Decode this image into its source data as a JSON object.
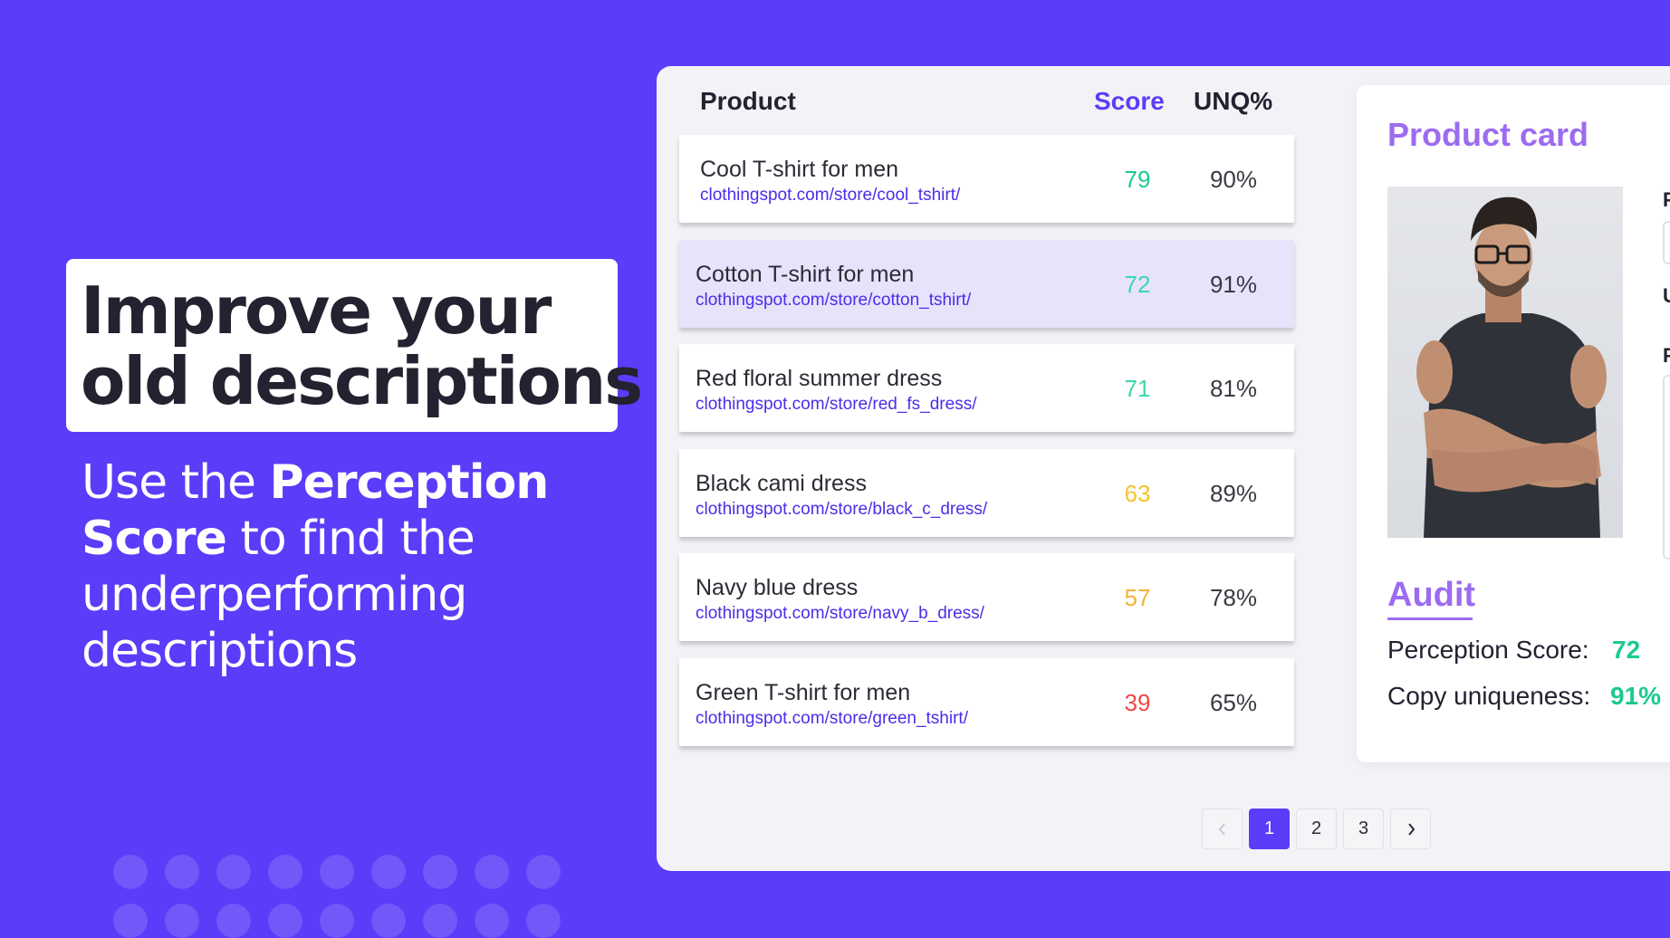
{
  "hero": {
    "headline_line1": "Improve your",
    "headline_line2": "old descriptions",
    "sub_pre": "Use the ",
    "sub_bold": "Perception Score",
    "sub_post": " to find the underperforming descriptions"
  },
  "table": {
    "headers": {
      "product": "Product",
      "score": "Score",
      "unq": "UNQ%"
    },
    "rows": [
      {
        "name": "Cool T-shirt for men",
        "url": "clothingspot.com/store/cool_tshirt/",
        "score": "79",
        "unq": "90%",
        "score_color": "#1cc98e",
        "selected": false
      },
      {
        "name": "Cotton T-shirt for men",
        "url": "clothingspot.com/store/cotton_tshirt/",
        "score": "72",
        "unq": "91%",
        "score_color": "#3dd6b0",
        "selected": true
      },
      {
        "name": "Red floral summer dress",
        "url": "clothingspot.com/store/red_fs_dress/",
        "score": "71",
        "unq": "81%",
        "score_color": "#3dd6b0",
        "selected": false
      },
      {
        "name": "Black cami dress",
        "url": "clothingspot.com/store/black_c_dress/",
        "score": "63",
        "unq": "89%",
        "score_color": "#f7c32e",
        "selected": false
      },
      {
        "name": "Navy blue dress",
        "url": "clothingspot.com/store/navy_b_dress/",
        "score": "57",
        "unq": "78%",
        "score_color": "#f7b23a",
        "selected": false
      },
      {
        "name": "Green T-shirt for men",
        "url": "clothingspot.com/store/green_tshirt/",
        "score": "39",
        "unq": "65%",
        "score_color": "#f04747",
        "selected": false
      }
    ]
  },
  "pagination": {
    "prev_icon": "chevron-left-icon",
    "next_icon": "chevron-right-icon",
    "pages": [
      "1",
      "2",
      "3"
    ],
    "current": "1"
  },
  "product_card": {
    "title": "Product card",
    "image": "man-in-glasses-photo",
    "side_letters": [
      "P",
      "U",
      "F"
    ],
    "audit_title": "Audit",
    "perception_label": "Perception Score:",
    "perception_value": "72",
    "uniqueness_label": "Copy uniqueness:",
    "uniqueness_value": "91%"
  },
  "colors": {
    "brand": "#5b3cf8",
    "accent_purple": "#9b6cf0",
    "score_green": "#1cc98e"
  }
}
